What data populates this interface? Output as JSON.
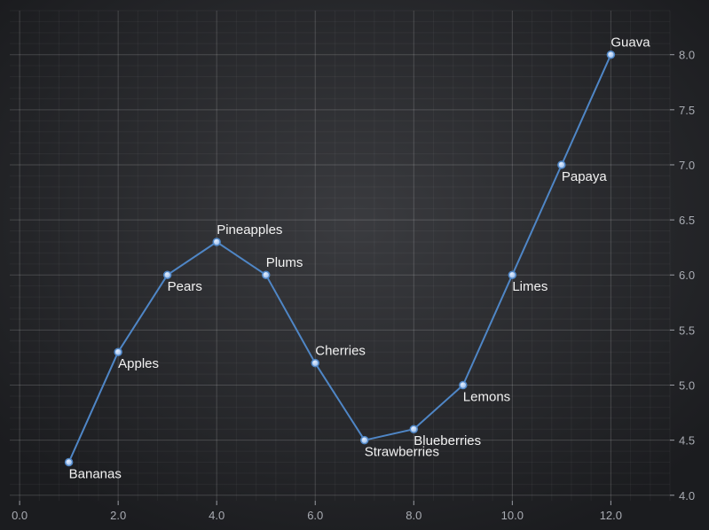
{
  "chart_data": {
    "type": "line",
    "title": "",
    "xlabel": "",
    "ylabel": "",
    "xlim": [
      -0.2,
      13.2
    ],
    "ylim": [
      3.95,
      8.4
    ],
    "x_ticks": [
      0,
      2,
      4,
      6,
      8,
      10,
      12
    ],
    "x_tick_labels": [
      "0.0",
      "2.0",
      "4.0",
      "6.0",
      "8.0",
      "10.0",
      "12.0"
    ],
    "y_ticks": [
      4.0,
      4.5,
      5.0,
      5.5,
      6.0,
      6.5,
      7.0,
      7.5,
      8.0
    ],
    "y_tick_labels": [
      "4.0",
      "4.5",
      "5.0",
      "5.5",
      "6.0",
      "6.5",
      "7.0",
      "7.5",
      "8.0"
    ],
    "y_axis_side": "right",
    "grid": true,
    "series": [
      {
        "color": "#4f86c6",
        "points": [
          {
            "x": 1,
            "y": 4.3,
            "label": "Bananas",
            "label_pos": "below"
          },
          {
            "x": 2,
            "y": 5.3,
            "label": "Apples",
            "label_pos": "below"
          },
          {
            "x": 3,
            "y": 6.0,
            "label": "Pears",
            "label_pos": "below"
          },
          {
            "x": 4,
            "y": 6.3,
            "label": "Pineapples",
            "label_pos": "above"
          },
          {
            "x": 5,
            "y": 6.0,
            "label": "Plums",
            "label_pos": "above"
          },
          {
            "x": 6,
            "y": 5.2,
            "label": "Cherries",
            "label_pos": "above"
          },
          {
            "x": 7,
            "y": 4.5,
            "label": "Strawberries",
            "label_pos": "below"
          },
          {
            "x": 8,
            "y": 4.6,
            "label": "Blueberries",
            "label_pos": "below"
          },
          {
            "x": 9,
            "y": 5.0,
            "label": "Lemons",
            "label_pos": "below"
          },
          {
            "x": 10,
            "y": 6.0,
            "label": "Limes",
            "label_pos": "below"
          },
          {
            "x": 11,
            "y": 7.0,
            "label": "Papaya",
            "label_pos": "below"
          },
          {
            "x": 12,
            "y": 8.0,
            "label": "Guava",
            "label_pos": "above"
          }
        ]
      }
    ]
  }
}
